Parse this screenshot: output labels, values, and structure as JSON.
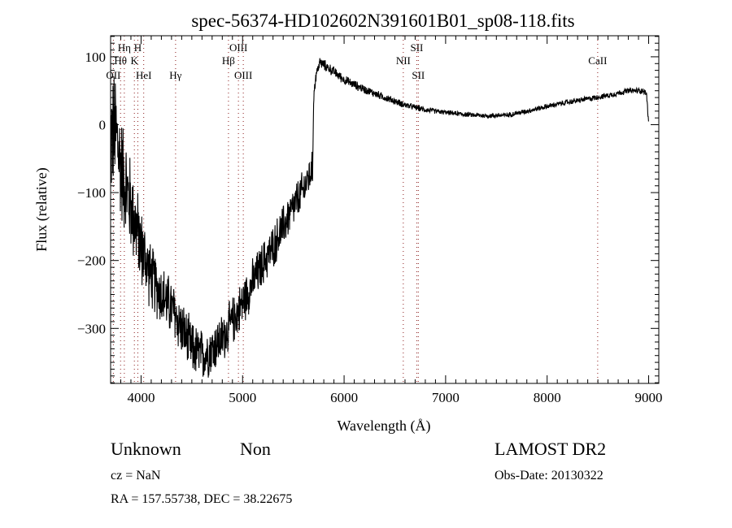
{
  "chart_data": {
    "type": "line",
    "title": "spec-56374-HD102602N391601B01_sp08-118.fits",
    "xlabel": "Wavelength (Å)",
    "ylabel": "Flux (relative)",
    "xlim": [
      3700,
      9100
    ],
    "ylim": [
      -381,
      131
    ],
    "x_ticks": [
      4000,
      5000,
      6000,
      7000,
      8000,
      9000
    ],
    "x_tick_labels": [
      "4000",
      "5000",
      "6000",
      "7000",
      "8000",
      "9000"
    ],
    "y_ticks": [
      100,
      0,
      -100,
      -200,
      -300
    ],
    "y_tick_labels": [
      "100",
      "0",
      "−100",
      "−200",
      "−300"
    ],
    "grid": false,
    "series": [
      {
        "name": "spectrum",
        "color": "#000000",
        "continuum": [
          [
            3700,
            -20
          ],
          [
            3750,
            -10
          ],
          [
            3800,
            -60
          ],
          [
            3900,
            -120
          ],
          [
            4000,
            -180
          ],
          [
            4100,
            -225
          ],
          [
            4200,
            -250
          ],
          [
            4300,
            -270
          ],
          [
            4400,
            -300
          ],
          [
            4500,
            -330
          ],
          [
            4600,
            -340
          ],
          [
            4700,
            -330
          ],
          [
            4800,
            -315
          ],
          [
            4900,
            -290
          ],
          [
            5000,
            -262
          ],
          [
            5100,
            -232
          ],
          [
            5200,
            -205
          ],
          [
            5300,
            -180
          ],
          [
            5400,
            -150
          ],
          [
            5500,
            -122
          ],
          [
            5600,
            -95
          ],
          [
            5690,
            -65
          ],
          [
            5700,
            40
          ],
          [
            5720,
            70
          ],
          [
            5760,
            92
          ],
          [
            5800,
            88
          ],
          [
            5900,
            78
          ],
          [
            6000,
            66
          ],
          [
            6200,
            52
          ],
          [
            6400,
            40
          ],
          [
            6600,
            29
          ],
          [
            6800,
            22
          ],
          [
            7000,
            18
          ],
          [
            7200,
            15
          ],
          [
            7400,
            13
          ],
          [
            7600,
            14
          ],
          [
            7800,
            20
          ],
          [
            8000,
            27
          ],
          [
            8200,
            33
          ],
          [
            8400,
            38
          ],
          [
            8600,
            43
          ],
          [
            8800,
            50
          ],
          [
            8950,
            50
          ],
          [
            8980,
            45
          ],
          [
            9000,
            0
          ]
        ],
        "noise_amplitude": [
          [
            3700,
            110
          ],
          [
            3900,
            80
          ],
          [
            4100,
            55
          ],
          [
            4500,
            45
          ],
          [
            5000,
            40
          ],
          [
            5500,
            35
          ],
          [
            5690,
            30
          ],
          [
            5700,
            10
          ],
          [
            6000,
            8
          ],
          [
            7000,
            4
          ],
          [
            9000,
            5
          ]
        ]
      }
    ],
    "line_markers": {
      "color": "#8b1a1a",
      "lines": [
        {
          "label": "OII",
          "wavelength": 3727,
          "row": 3
        },
        {
          "label": "Hθ",
          "wavelength": 3798,
          "row": 2
        },
        {
          "label": "Hη",
          "wavelength": 3835,
          "row": 1
        },
        {
          "label": "K",
          "wavelength": 3934,
          "row": 2
        },
        {
          "label": "H",
          "wavelength": 3968,
          "row": 1
        },
        {
          "label": "HeI",
          "wavelength": 4026,
          "row": 3
        },
        {
          "label": "Hγ",
          "wavelength": 4340,
          "row": 3
        },
        {
          "label": "Hβ",
          "wavelength": 4861,
          "row": 2
        },
        {
          "label": "OIII",
          "wavelength": 4959,
          "row": 1
        },
        {
          "label": "OIII",
          "wavelength": 5007,
          "row": 3
        },
        {
          "label": "NII",
          "wavelength": 6583,
          "row": 2
        },
        {
          "label": "SII",
          "wavelength": 6716,
          "row": 1
        },
        {
          "label": "SII",
          "wavelength": 6731,
          "row": 3
        },
        {
          "label": "CaII",
          "wavelength": 8498,
          "row": 2
        }
      ]
    }
  },
  "info": {
    "class": "Unknown",
    "subclass": "Non",
    "survey": "LAMOST DR2",
    "cz": "cz = NaN",
    "obs_date": "Obs-Date: 20130322",
    "coords": "RA = 157.55738, DEC =  38.22675"
  }
}
